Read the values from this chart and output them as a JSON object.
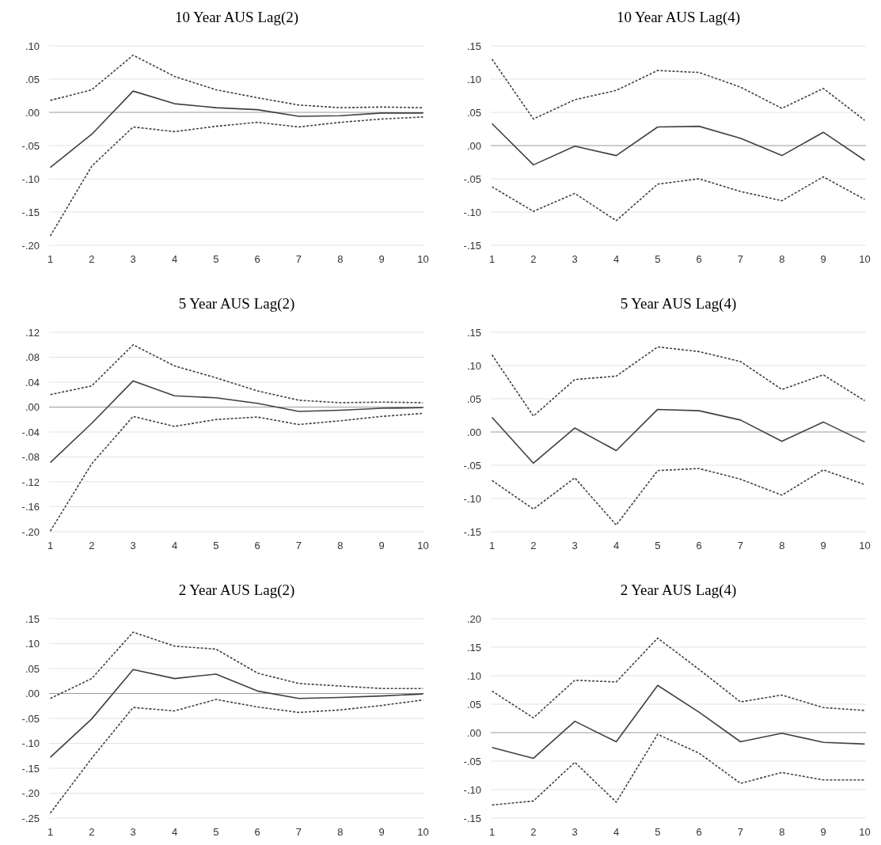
{
  "chart_data": [
    {
      "type": "line",
      "title": "10 Year AUS Lag(2)",
      "categories": [
        "1",
        "2",
        "3",
        "4",
        "5",
        "6",
        "7",
        "8",
        "9",
        "10"
      ],
      "ylim": [
        -0.2,
        0.1
      ],
      "yticks": [
        {
          "value": -0.2,
          "label": "-.20"
        },
        {
          "value": -0.15,
          "label": "-.15"
        },
        {
          "value": -0.1,
          "label": "-.10"
        },
        {
          "value": -0.05,
          "label": "-.05"
        },
        {
          "value": 0,
          "label": ".00"
        },
        {
          "value": 0.05,
          "label": ".05"
        },
        {
          "value": 0.1,
          "label": ".10"
        }
      ],
      "grid": "y",
      "series": [
        {
          "color": "#404040",
          "line_style": "solid",
          "values": [
            -0.083,
            -0.033,
            0.032,
            0.013,
            0.007,
            0.004,
            -0.006,
            -0.005,
            -0.001,
            -0.001
          ]
        },
        {
          "color": "#404040",
          "line_style": "dashed",
          "values": [
            0.018,
            0.034,
            0.086,
            0.054,
            0.034,
            0.022,
            0.011,
            0.007,
            0.008,
            0.007
          ]
        },
        {
          "color": "#404040",
          "line_style": "dashed",
          "values": [
            -0.186,
            -0.081,
            -0.022,
            -0.029,
            -0.021,
            -0.015,
            -0.022,
            -0.015,
            -0.01,
            -0.007
          ]
        }
      ]
    },
    {
      "type": "line",
      "title": "10 Year AUS Lag(4)",
      "categories": [
        "1",
        "2",
        "3",
        "4",
        "5",
        "6",
        "7",
        "8",
        "9",
        "10"
      ],
      "ylim": [
        -0.15,
        0.15
      ],
      "yticks": [
        {
          "value": -0.15,
          "label": "-.15"
        },
        {
          "value": -0.1,
          "label": "-.10"
        },
        {
          "value": -0.05,
          "label": "-.05"
        },
        {
          "value": 0,
          "label": ".00"
        },
        {
          "value": 0.05,
          "label": ".05"
        },
        {
          "value": 0.1,
          "label": ".10"
        },
        {
          "value": 0.15,
          "label": ".15"
        }
      ],
      "grid": "y",
      "series": [
        {
          "color": "#404040",
          "line_style": "solid",
          "values": [
            0.033,
            -0.029,
            -0.001,
            -0.015,
            0.028,
            0.029,
            0.011,
            -0.015,
            0.02,
            -0.022
          ]
        },
        {
          "color": "#404040",
          "line_style": "dashed",
          "values": [
            0.13,
            0.04,
            0.069,
            0.083,
            0.113,
            0.11,
            0.088,
            0.056,
            0.086,
            0.038
          ]
        },
        {
          "color": "#404040",
          "line_style": "dashed",
          "values": [
            -0.062,
            -0.099,
            -0.072,
            -0.113,
            -0.058,
            -0.05,
            -0.069,
            -0.083,
            -0.047,
            -0.081
          ]
        }
      ]
    },
    {
      "type": "line",
      "title": "5 Year AUS Lag(2)",
      "categories": [
        "1",
        "2",
        "3",
        "4",
        "5",
        "6",
        "7",
        "8",
        "9",
        "10"
      ],
      "ylim": [
        -0.2,
        0.12
      ],
      "yticks": [
        {
          "value": -0.2,
          "label": "-.20"
        },
        {
          "value": -0.16,
          "label": "-.16"
        },
        {
          "value": -0.12,
          "label": "-.12"
        },
        {
          "value": -0.08,
          "label": "-.08"
        },
        {
          "value": -0.04,
          "label": "-.04"
        },
        {
          "value": 0,
          "label": ".00"
        },
        {
          "value": 0.04,
          "label": ".04"
        },
        {
          "value": 0.08,
          "label": ".08"
        },
        {
          "value": 0.12,
          "label": ".12"
        }
      ],
      "grid": "y",
      "series": [
        {
          "color": "#404040",
          "line_style": "solid",
          "values": [
            -0.089,
            -0.026,
            0.042,
            0.018,
            0.015,
            0.006,
            -0.007,
            -0.005,
            -0.002,
            -0.001
          ]
        },
        {
          "color": "#404040",
          "line_style": "dashed",
          "values": [
            0.02,
            0.034,
            0.1,
            0.066,
            0.047,
            0.026,
            0.011,
            0.007,
            0.008,
            0.007
          ]
        },
        {
          "color": "#404040",
          "line_style": "dashed",
          "values": [
            -0.199,
            -0.091,
            -0.015,
            -0.031,
            -0.02,
            -0.016,
            -0.028,
            -0.022,
            -0.015,
            -0.01
          ]
        }
      ]
    },
    {
      "type": "line",
      "title": "5 Year AUS Lag(4)",
      "categories": [
        "1",
        "2",
        "3",
        "4",
        "5",
        "6",
        "7",
        "8",
        "9",
        "10"
      ],
      "ylim": [
        -0.15,
        0.15
      ],
      "yticks": [
        {
          "value": -0.15,
          "label": "-.15"
        },
        {
          "value": -0.1,
          "label": "-.10"
        },
        {
          "value": -0.05,
          "label": "-.05"
        },
        {
          "value": 0,
          "label": ".00"
        },
        {
          "value": 0.05,
          "label": ".05"
        },
        {
          "value": 0.1,
          "label": ".10"
        },
        {
          "value": 0.15,
          "label": ".15"
        }
      ],
      "grid": "y",
      "series": [
        {
          "color": "#404040",
          "line_style": "solid",
          "values": [
            0.022,
            -0.047,
            0.006,
            -0.028,
            0.034,
            0.032,
            0.018,
            -0.014,
            0.015,
            -0.015
          ]
        },
        {
          "color": "#404040",
          "line_style": "dashed",
          "values": [
            0.116,
            0.024,
            0.079,
            0.084,
            0.128,
            0.121,
            0.106,
            0.064,
            0.086,
            0.047
          ]
        },
        {
          "color": "#404040",
          "line_style": "dashed",
          "values": [
            -0.073,
            -0.116,
            -0.069,
            -0.14,
            -0.058,
            -0.055,
            -0.071,
            -0.095,
            -0.057,
            -0.079
          ]
        }
      ]
    },
    {
      "type": "line",
      "title": "2 Year AUS Lag(2)",
      "categories": [
        "1",
        "2",
        "3",
        "4",
        "5",
        "6",
        "7",
        "8",
        "9",
        "10"
      ],
      "ylim": [
        -0.25,
        0.15
      ],
      "yticks": [
        {
          "value": -0.25,
          "label": "-.25"
        },
        {
          "value": -0.2,
          "label": "-.20"
        },
        {
          "value": -0.15,
          "label": "-.15"
        },
        {
          "value": -0.1,
          "label": "-.10"
        },
        {
          "value": -0.05,
          "label": "-.05"
        },
        {
          "value": 0,
          "label": ".00"
        },
        {
          "value": 0.05,
          "label": ".05"
        },
        {
          "value": 0.1,
          "label": ".10"
        },
        {
          "value": 0.15,
          "label": ".15"
        }
      ],
      "grid": "y",
      "series": [
        {
          "color": "#404040",
          "line_style": "solid",
          "values": [
            -0.128,
            -0.051,
            0.048,
            0.03,
            0.039,
            0.005,
            -0.01,
            -0.008,
            -0.005,
            -0.001
          ]
        },
        {
          "color": "#404040",
          "line_style": "dashed",
          "values": [
            -0.01,
            0.03,
            0.123,
            0.095,
            0.089,
            0.041,
            0.02,
            0.015,
            0.01,
            0.01
          ]
        },
        {
          "color": "#404040",
          "line_style": "dashed",
          "values": [
            -0.24,
            -0.13,
            -0.028,
            -0.035,
            -0.012,
            -0.027,
            -0.038,
            -0.033,
            -0.024,
            -0.013
          ]
        }
      ]
    },
    {
      "type": "line",
      "title": "2 Year AUS Lag(4)",
      "categories": [
        "1",
        "2",
        "3",
        "4",
        "5",
        "6",
        "7",
        "8",
        "9",
        "10"
      ],
      "ylim": [
        -0.15,
        0.2
      ],
      "yticks": [
        {
          "value": -0.15,
          "label": "-.15"
        },
        {
          "value": -0.1,
          "label": "-.10"
        },
        {
          "value": -0.05,
          "label": "-.05"
        },
        {
          "value": 0,
          "label": ".00"
        },
        {
          "value": 0.05,
          "label": ".05"
        },
        {
          "value": 0.1,
          "label": ".10"
        },
        {
          "value": 0.15,
          "label": ".15"
        },
        {
          "value": 0.2,
          "label": ".20"
        }
      ],
      "grid": "y",
      "series": [
        {
          "color": "#404040",
          "line_style": "solid",
          "values": [
            -0.026,
            -0.045,
            0.02,
            -0.016,
            0.083,
            0.036,
            -0.016,
            -0.001,
            -0.017,
            -0.02
          ]
        },
        {
          "color": "#404040",
          "line_style": "dashed",
          "values": [
            0.073,
            0.026,
            0.092,
            0.089,
            0.166,
            0.111,
            0.054,
            0.066,
            0.044,
            0.039
          ]
        },
        {
          "color": "#404040",
          "line_style": "dashed",
          "values": [
            -0.127,
            -0.12,
            -0.052,
            -0.122,
            -0.003,
            -0.036,
            -0.089,
            -0.07,
            -0.083,
            -0.083
          ]
        }
      ]
    }
  ]
}
